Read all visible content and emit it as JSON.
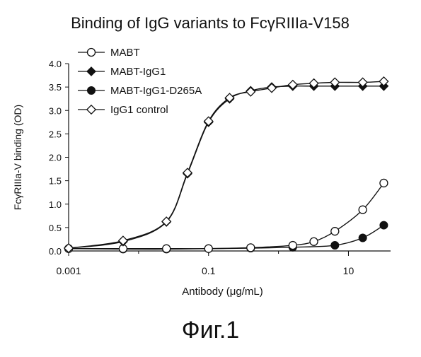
{
  "chart_data": {
    "type": "line",
    "title": "Binding of IgG variants to FcγRIIIa-V158",
    "xlabel": "Antibody (μg/mL)",
    "ylabel": "FcγRIIIa-V binding (OD)",
    "x_scale": "log",
    "xlim": [
      0.001,
      40
    ],
    "ylim": [
      0,
      4.0
    ],
    "x_ticks": [
      0.001,
      0.1,
      10
    ],
    "x_tick_labels": [
      "0.001",
      "0.1",
      "10"
    ],
    "y_ticks": [
      0,
      0.5,
      1.0,
      1.5,
      2.0,
      2.5,
      3.0,
      3.5,
      4.0
    ],
    "y_tick_labels": [
      "0.0",
      "0.5",
      "1.0",
      "1.5",
      "2.0",
      "2.5",
      "3.0",
      "3.5",
      "4.0"
    ],
    "grid": false,
    "legend_position": "top-left",
    "series": [
      {
        "name": "MABT",
        "marker": "open-circle",
        "x": [
          0.001,
          0.006,
          0.025,
          0.1,
          0.4,
          1.6,
          3.2,
          6.4,
          16,
          32
        ],
        "y": [
          0.05,
          0.05,
          0.05,
          0.05,
          0.07,
          0.12,
          0.2,
          0.42,
          0.88,
          1.45
        ]
      },
      {
        "name": "MABT-IgG1",
        "marker": "filled-diamond",
        "x": [
          0.001,
          0.006,
          0.025,
          0.05,
          0.1,
          0.2,
          0.4,
          0.8,
          1.6,
          3.2,
          6.4,
          16,
          32
        ],
        "y": [
          0.06,
          0.2,
          0.62,
          1.65,
          2.75,
          3.25,
          3.42,
          3.5,
          3.52,
          3.52,
          3.52,
          3.52,
          3.52
        ]
      },
      {
        "name": "MABT-IgG1-D265A",
        "marker": "filled-circle",
        "x": [
          0.001,
          0.006,
          0.025,
          0.1,
          0.4,
          1.6,
          6.4,
          16,
          32
        ],
        "y": [
          0.05,
          0.04,
          0.04,
          0.05,
          0.06,
          0.08,
          0.12,
          0.28,
          0.55
        ]
      },
      {
        "name": "IgG1 control",
        "marker": "open-diamond",
        "x": [
          0.001,
          0.006,
          0.025,
          0.05,
          0.1,
          0.2,
          0.4,
          0.8,
          1.6,
          3.2,
          6.4,
          16,
          32
        ],
        "y": [
          0.06,
          0.22,
          0.63,
          1.67,
          2.77,
          3.27,
          3.4,
          3.48,
          3.55,
          3.58,
          3.6,
          3.6,
          3.62
        ]
      }
    ]
  },
  "caption": "Фиг.1"
}
